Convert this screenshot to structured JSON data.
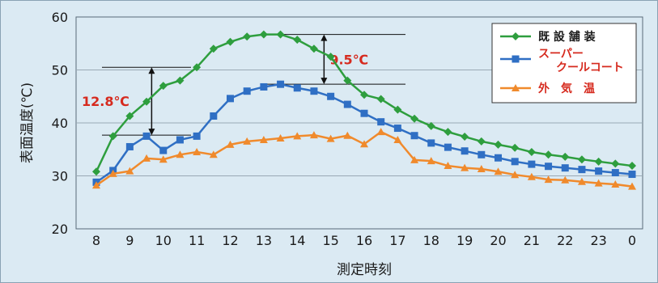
{
  "chart_data": {
    "type": "line",
    "xlabel": "測定時刻",
    "ylabel": "表面温度(℃)",
    "ylim": [
      20,
      60
    ],
    "yticks": [
      20,
      30,
      40,
      50,
      60
    ],
    "xticks": [
      "8",
      "9",
      "10",
      "11",
      "12",
      "13",
      "14",
      "15",
      "16",
      "17",
      "18",
      "19",
      "20",
      "21",
      "22",
      "23",
      "0"
    ],
    "grid": true,
    "legend_position": "top-right",
    "x": [
      8,
      8.5,
      9,
      9.5,
      10,
      10.5,
      11,
      11.5,
      12,
      12.5,
      13,
      13.5,
      14,
      14.5,
      15,
      15.5,
      16,
      16.5,
      17,
      17.5,
      18,
      18.5,
      19,
      19.5,
      20,
      20.5,
      21,
      21.5,
      22,
      22.5,
      23,
      23.5,
      24
    ],
    "series": [
      {
        "name": "既 設 舗 装",
        "color": "#2e9e3e",
        "marker": "diamond",
        "values": [
          30.8,
          37.5,
          41.3,
          44.0,
          47.0,
          48.0,
          50.5,
          54.0,
          55.3,
          56.3,
          56.7,
          56.7,
          55.7,
          54.0,
          52.5,
          48.0,
          45.3,
          44.5,
          42.5,
          40.8,
          39.4,
          38.3,
          37.4,
          36.5,
          35.9,
          35.3,
          34.5,
          34.0,
          33.6,
          33.1,
          32.7,
          32.3,
          31.9
        ]
      },
      {
        "name": "スーパー\nクールコート",
        "color": "#2f6fc4",
        "marker": "square",
        "values": [
          28.8,
          31.0,
          35.5,
          37.5,
          34.8,
          36.8,
          37.5,
          41.3,
          44.6,
          46.0,
          46.8,
          47.3,
          46.6,
          46.0,
          45.0,
          43.5,
          41.8,
          40.2,
          39.0,
          37.6,
          36.2,
          35.4,
          34.7,
          34.0,
          33.4,
          32.7,
          32.2,
          31.8,
          31.5,
          31.2,
          30.9,
          30.6,
          30.3
        ]
      },
      {
        "name": "外　気　温",
        "color": "#f08a2c",
        "marker": "triangle",
        "values": [
          28.2,
          30.4,
          30.9,
          33.3,
          33.1,
          34.0,
          34.5,
          34.0,
          35.9,
          36.5,
          36.8,
          37.1,
          37.5,
          37.7,
          37.0,
          37.6,
          36.0,
          38.3,
          36.8,
          33.0,
          32.8,
          31.9,
          31.5,
          31.3,
          30.8,
          30.2,
          29.8,
          29.3,
          29.2,
          28.9,
          28.6,
          28.4,
          28.0
        ]
      }
    ],
    "annotations": [
      {
        "text": "12.8℃",
        "x": 9,
        "y_top": 50.5,
        "y_bottom": 37.7
      },
      {
        "text": "9.5℃",
        "x": 14.8,
        "y_top": 56.7,
        "y_bottom": 47.3
      }
    ]
  }
}
